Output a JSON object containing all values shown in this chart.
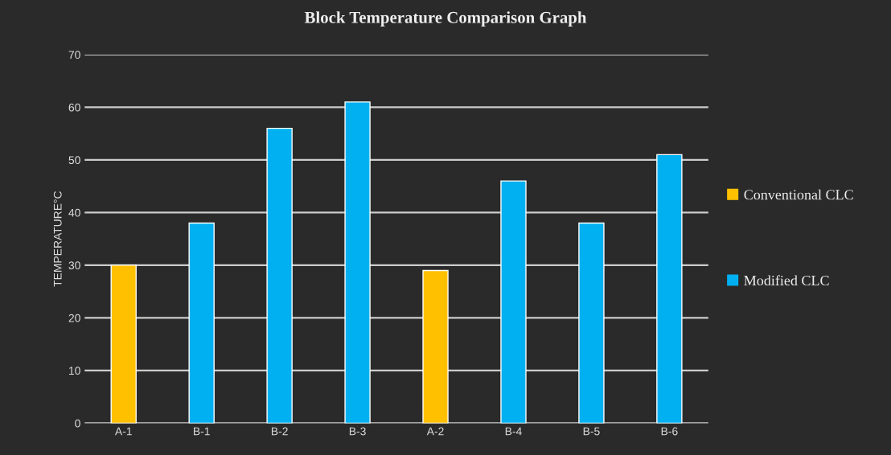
{
  "chart_data": {
    "type": "bar",
    "title": "Block Temperature Comparison Graph",
    "ylabel": "TEMPERATURE°C",
    "categories": [
      "A-1",
      "B-1",
      "B-2",
      "B-3",
      "A-2",
      "B-4",
      "B-5",
      "B-6"
    ],
    "series": [
      {
        "name": "Conventional CLC",
        "color": "#ffc000",
        "values": [
          30,
          null,
          null,
          null,
          29,
          null,
          null,
          null
        ]
      },
      {
        "name": "Modified CLC",
        "color": "#00b0f0",
        "values": [
          null,
          38,
          56,
          61,
          null,
          46,
          38,
          51
        ]
      }
    ],
    "ylim": [
      0,
      70
    ],
    "yticks": [
      0,
      10,
      20,
      30,
      40,
      50,
      60,
      70
    ],
    "grid": "y",
    "legend": "right"
  }
}
